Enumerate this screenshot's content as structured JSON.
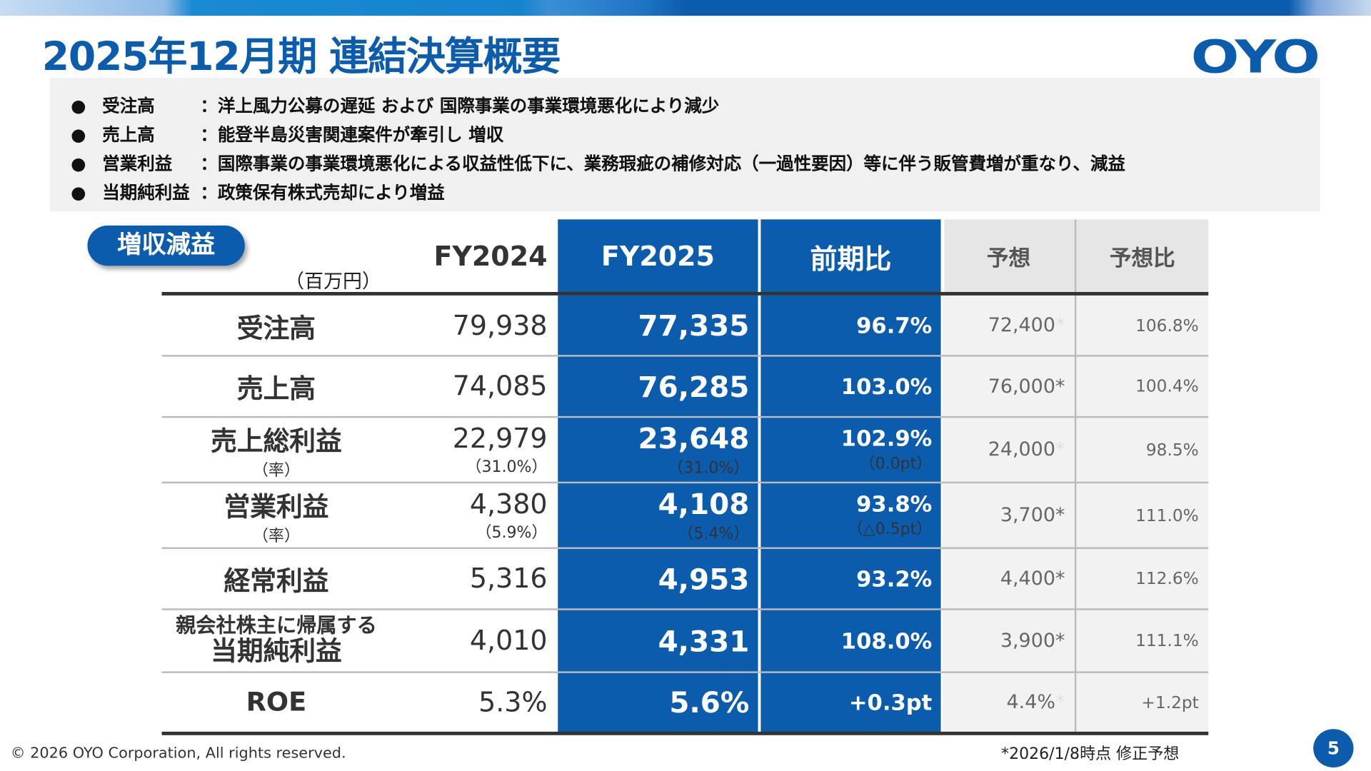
{
  "header": {
    "title": "2025年12月期 連結決算概要",
    "logo": "OYO"
  },
  "summary": [
    {
      "label": "受注高",
      "text": "：洋上風力公募の遅延 および 国際事業の事業環境悪化により減少"
    },
    {
      "label": "売上高",
      "text": "：能登半島災害関連案件が牽引し 増収"
    },
    {
      "label": "営業利益",
      "text": "：国際事業の事業環境悪化による収益性低下に、業務瑕疵の補修対応（一過性要因）等に伴う販管費増が重なり、減益"
    },
    {
      "label": "当期純利益",
      "text": "：政策保有株式売却により増益"
    }
  ],
  "badge": "増収減益",
  "unit": "（百万円）",
  "columns": [
    "FY2024",
    "FY2025",
    "前期比",
    "予想",
    "予想比"
  ],
  "rows": [
    {
      "label": "受注高",
      "fy2024": "79,938",
      "fy2025": "77,335",
      "yoy": "96.7%",
      "forecast": "72,400",
      "forecast_mark": "*",
      "forecast_mark_faint": true,
      "vs_forecast": "106.8%"
    },
    {
      "label": "売上高",
      "fy2024": "74,085",
      "fy2025": "76,285",
      "yoy": "103.0%",
      "forecast": "76,000",
      "forecast_mark": "*",
      "forecast_mark_faint": false,
      "vs_forecast": "100.4%"
    },
    {
      "label": "売上総利益",
      "label_sub": "（率）",
      "fy2024": "22,979",
      "fy2024_sub": "（31.0%）",
      "fy2025": "23,648",
      "fy2025_sub": "（31.0%）",
      "yoy": "102.9%",
      "yoy_sub": "（0.0pt）",
      "forecast": "24,000",
      "forecast_mark": "*",
      "forecast_mark_faint": true,
      "vs_forecast": "98.5%"
    },
    {
      "label": "営業利益",
      "label_sub": "（率）",
      "fy2024": "4,380",
      "fy2024_sub": "（5.9%）",
      "fy2025": "4,108",
      "fy2025_sub": "（5.4%）",
      "yoy": "93.8%",
      "yoy_sub": "（△0.5pt）",
      "forecast": "3,700",
      "forecast_mark": "*",
      "forecast_mark_faint": false,
      "vs_forecast": "111.0%"
    },
    {
      "label": "経常利益",
      "fy2024": "5,316",
      "fy2025": "4,953",
      "yoy": "93.2%",
      "forecast": "4,400",
      "forecast_mark": "*",
      "forecast_mark_faint": false,
      "vs_forecast": "112.6%"
    },
    {
      "label_top": "親会社株主に帰属する",
      "label": "当期純利益",
      "fy2024": "4,010",
      "fy2025": "4,331",
      "yoy": "108.0%",
      "forecast": "3,900",
      "forecast_mark": "*",
      "forecast_mark_faint": false,
      "vs_forecast": "111.1%"
    },
    {
      "label": "ROE",
      "fy2024": "5.3%",
      "fy2025": "5.6%",
      "yoy": "+0.3pt",
      "forecast": "4.4%",
      "forecast_mark": "*",
      "forecast_mark_faint": true,
      "vs_forecast": "+1.2pt"
    }
  ],
  "footer": {
    "copyright": "© 2026 OYO Corporation, All rights reserved.",
    "note": "*2026/1/8時点 修正予想",
    "page": "5"
  },
  "colors": {
    "brand": "#0b5cad",
    "forecast_bg": "#f2f2f2"
  }
}
